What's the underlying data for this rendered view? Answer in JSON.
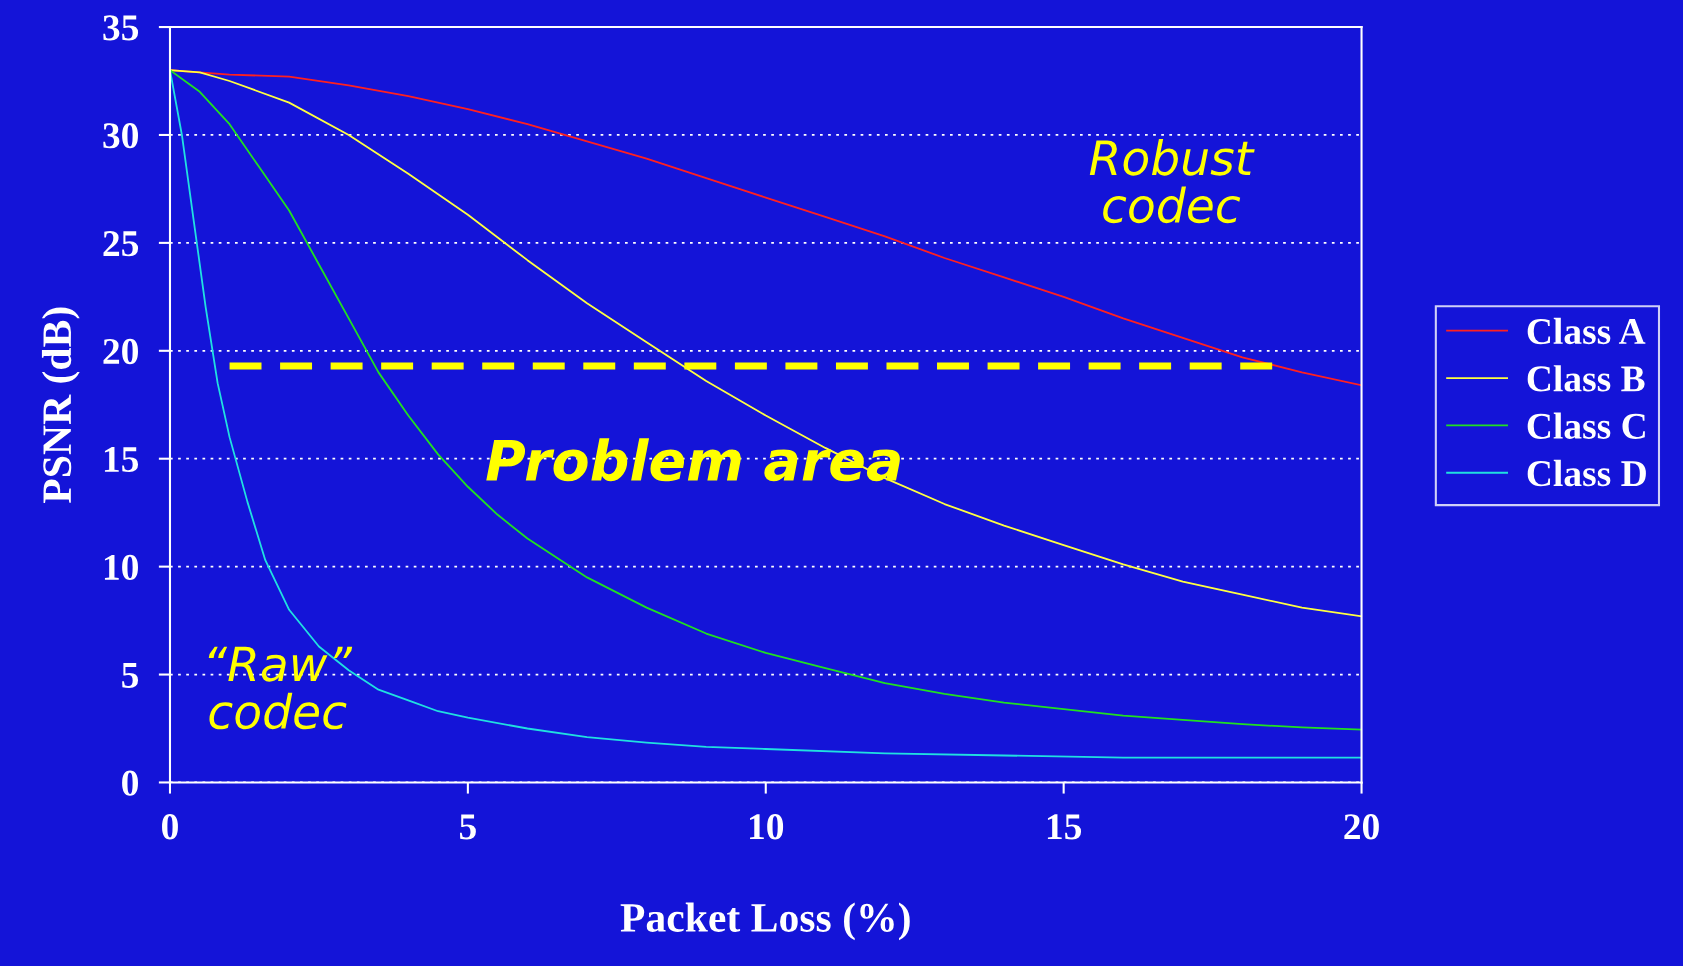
{
  "chart_data": {
    "type": "line",
    "xlabel": "Packet Loss (%)",
    "ylabel": "PSNR (dB)",
    "xlim": [
      0,
      20
    ],
    "xticks": [
      0,
      5,
      10,
      15,
      20
    ],
    "ylim": [
      0,
      35
    ],
    "yticks": [
      0,
      5,
      10,
      15,
      20,
      25,
      30,
      35
    ],
    "grid": "y",
    "legend": "right",
    "marker": "none",
    "line_style": "solid",
    "series": [
      {
        "name": "Class A",
        "color": "#ff2020",
        "x": [
          0,
          1,
          2,
          3,
          4,
          5,
          6,
          7,
          8,
          9,
          10,
          11,
          12,
          13,
          14,
          15,
          16,
          17,
          18,
          19,
          20
        ],
        "values": [
          33,
          32.8,
          32.7,
          32.3,
          31.8,
          31.2,
          30.5,
          29.7,
          28.9,
          28.0,
          27.1,
          26.2,
          25.3,
          24.3,
          23.4,
          22.5,
          21.5,
          20.6,
          19.7,
          19.0,
          18.4
        ]
      },
      {
        "name": "Class B",
        "color": "#ffff40",
        "x": [
          0,
          0.5,
          1,
          2,
          3,
          4,
          5,
          6,
          7,
          8,
          9,
          10,
          11,
          12,
          13,
          14,
          15,
          16,
          17,
          18,
          19,
          20
        ],
        "values": [
          33,
          32.9,
          32.5,
          31.5,
          30,
          28.2,
          26.3,
          24.2,
          22.2,
          20.4,
          18.6,
          17,
          15.5,
          14.1,
          12.9,
          11.9,
          11,
          10.1,
          9.3,
          8.7,
          8.1,
          7.7
        ]
      },
      {
        "name": "Class C",
        "color": "#20e020",
        "x": [
          0,
          0.5,
          1,
          1.5,
          2,
          2.5,
          3,
          3.5,
          4,
          4.5,
          5,
          5.5,
          6,
          7,
          8,
          9,
          10,
          11,
          12,
          13,
          14,
          15,
          16,
          17,
          18,
          19,
          20
        ],
        "values": [
          33,
          32,
          30.5,
          28.5,
          26.5,
          24,
          21.5,
          19,
          17,
          15.2,
          13.7,
          12.4,
          11.3,
          9.5,
          8.1,
          6.9,
          6,
          5.3,
          4.6,
          4.1,
          3.7,
          3.4,
          3.1,
          2.9,
          2.7,
          2.55,
          2.45
        ]
      },
      {
        "name": "Class D",
        "color": "#20e0e0",
        "x": [
          0,
          0.2,
          0.4,
          0.6,
          0.8,
          1,
          1.3,
          1.6,
          2,
          2.5,
          3,
          3.5,
          4,
          4.5,
          5,
          6,
          7,
          8,
          9,
          10,
          12,
          14,
          16,
          18,
          20
        ],
        "values": [
          33,
          30,
          26,
          22,
          18.5,
          16,
          13,
          10.3,
          8,
          6.3,
          5.2,
          4.3,
          3.8,
          3.3,
          3,
          2.5,
          2.1,
          1.85,
          1.65,
          1.55,
          1.35,
          1.25,
          1.15,
          1.15,
          1.15
        ]
      },
      {
        "color": "#ffff00",
        "line_style": "dashed",
        "x": [
          1,
          18.5
        ],
        "values": [
          19.3,
          19.3
        ]
      }
    ],
    "annotations": [
      "Robust\ncodec",
      "Problem area",
      "“Raw”\ncodec"
    ]
  }
}
